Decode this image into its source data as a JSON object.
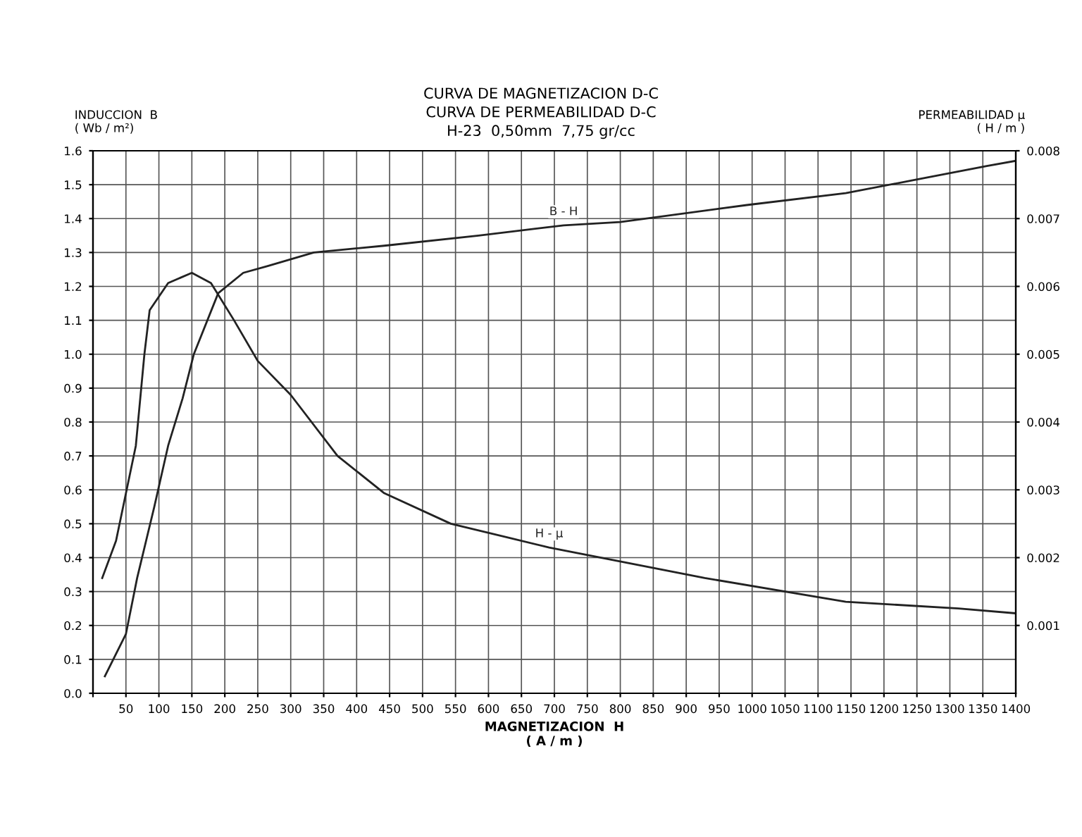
{
  "chart_data": {
    "type": "line",
    "title": "CURVA DE MAGNETIZACION D-C\nCURVA DE PERMEABILIDAD D-C\nH-23  0,50mm  7,75 gr/cc",
    "xlabel": "MAGNETIZACION  H\n( A / m )",
    "ylabel": "INDUCCION  B\n( Wb / m²)",
    "y2label": "PERMEABILIDAD μ\n( H / m )",
    "series": [
      {
        "name": "B - H",
        "color": "#222222",
        "x": [
          18,
          50,
          67,
          93,
          114,
          136,
          153,
          190,
          228,
          265,
          335,
          442,
          585,
          714,
          800,
          992,
          1142,
          1356,
          1399
        ],
        "values": [
          0.05,
          0.175,
          0.34,
          0.55,
          0.73,
          0.87,
          1.0,
          1.18,
          1.24,
          1.26,
          1.3,
          1.32,
          1.35,
          1.38,
          1.39,
          1.44,
          1.475,
          1.555,
          1.57
        ]
      },
      {
        "name": "H - μ",
        "color": "#222222",
        "axis": "y2",
        "x": [
          14,
          35,
          65,
          78,
          86,
          114,
          150,
          179,
          214,
          250,
          300,
          371,
          442,
          543,
          692,
          928,
          1142,
          1313,
          1399
        ],
        "values": [
          0.0017,
          0.00225,
          0.00365,
          0.005,
          0.00565,
          0.00605,
          0.0062,
          0.00605,
          0.0055,
          0.0049,
          0.0044,
          0.0035,
          0.00295,
          0.0025,
          0.00215,
          0.0017,
          0.00135,
          0.00125,
          0.00118
        ]
      }
    ],
    "xlim": [
      0,
      1400
    ],
    "xticks": [
      {
        "value": 0,
        "label": null
      },
      50,
      100,
      150,
      200,
      250,
      300,
      350,
      400,
      450,
      500,
      550,
      600,
      650,
      700,
      750,
      800,
      850,
      900,
      950,
      1000,
      1050,
      1100,
      1150,
      1200,
      1250,
      1300,
      1350,
      1400
    ],
    "ylim": [
      0,
      1.6
    ],
    "yticks": [
      {
        "value": 0,
        "label": "0.0"
      },
      0.1,
      0.2,
      0.3,
      0.4,
      0.5,
      0.6,
      0.7,
      0.8,
      0.9,
      {
        "value": 1,
        "label": "1.0"
      },
      1.1,
      1.2,
      1.3,
      1.4,
      1.5,
      1.6
    ],
    "y2lim": [
      0,
      0.008
    ],
    "y2ticks": [
      0.001,
      0.002,
      0.003,
      0.004,
      0.005,
      0.006,
      0.007,
      0.008
    ],
    "grid": true,
    "marker": "none",
    "line_style": "solid",
    "legend": false
  }
}
